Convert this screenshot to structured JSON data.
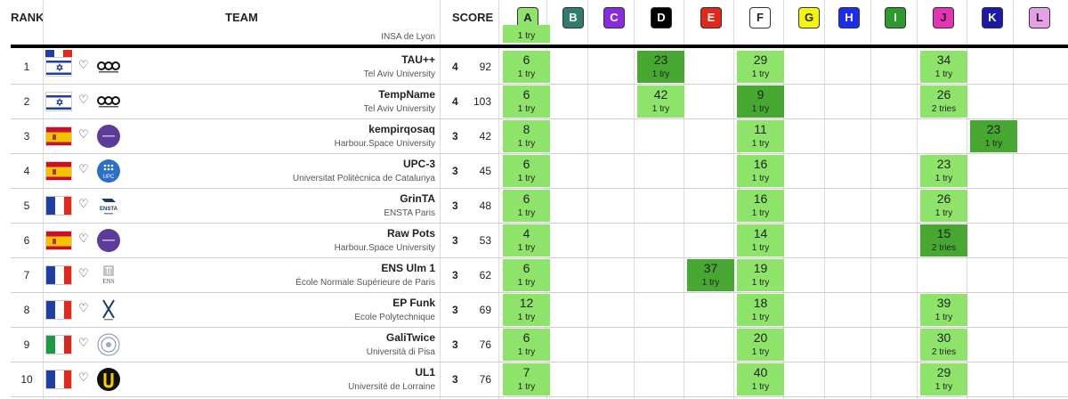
{
  "header": {
    "rank": "RANK",
    "team": "TEAM",
    "score": "SCORE"
  },
  "problems": [
    {
      "letter": "A",
      "color": "#8ee46a"
    },
    {
      "letter": "B",
      "color": "#2e7d6e"
    },
    {
      "letter": "C",
      "color": "#8a2be2"
    },
    {
      "letter": "D",
      "color": "#000000"
    },
    {
      "letter": "E",
      "color": "#e0281b"
    },
    {
      "letter": "F",
      "color": "#ffffff"
    },
    {
      "letter": "G",
      "color": "#f5f50a"
    },
    {
      "letter": "H",
      "color": "#1c2cf0"
    },
    {
      "letter": "I",
      "color": "#2c9a2c"
    },
    {
      "letter": "J",
      "color": "#e632b4"
    },
    {
      "letter": "K",
      "color": "#1a1aa8"
    },
    {
      "letter": "L",
      "color": "#e6a0e6"
    }
  ],
  "partial_row": {
    "university": "INSA de Lyon",
    "a_tries": "1 try"
  },
  "rows": [
    {
      "rank": "1",
      "team": "TAU++",
      "uni": "Tel Aviv University",
      "solved": "4",
      "penalty": "92",
      "flag": "il",
      "logo": "tau-logo",
      "cells": [
        {
          "p": 0,
          "time": "6",
          "tries": "1 try"
        },
        {
          "p": 3,
          "time": "23",
          "tries": "1 try",
          "first": true
        },
        {
          "p": 5,
          "time": "29",
          "tries": "1 try"
        },
        {
          "p": 9,
          "time": "34",
          "tries": "1 try"
        }
      ]
    },
    {
      "rank": "2",
      "team": "TempName",
      "uni": "Tel Aviv University",
      "solved": "4",
      "penalty": "103",
      "flag": "il",
      "logo": "tau-logo",
      "cells": [
        {
          "p": 0,
          "time": "6",
          "tries": "1 try"
        },
        {
          "p": 3,
          "time": "42",
          "tries": "1 try"
        },
        {
          "p": 5,
          "time": "9",
          "tries": "1 try",
          "first": true
        },
        {
          "p": 9,
          "time": "26",
          "tries": "2 tries"
        }
      ]
    },
    {
      "rank": "3",
      "team": "kempirqosaq",
      "uni": "Harbour.Space University",
      "solved": "3",
      "penalty": "42",
      "flag": "es",
      "logo": "harbour-logo",
      "cells": [
        {
          "p": 0,
          "time": "8",
          "tries": "1 try"
        },
        {
          "p": 5,
          "time": "11",
          "tries": "1 try"
        },
        {
          "p": 10,
          "time": "23",
          "tries": "1 try",
          "first": true
        }
      ]
    },
    {
      "rank": "4",
      "team": "UPC-3",
      "uni": "Universitat Politècnica de Catalunya",
      "solved": "3",
      "penalty": "45",
      "flag": "es",
      "logo": "upc-logo",
      "cells": [
        {
          "p": 0,
          "time": "6",
          "tries": "1 try"
        },
        {
          "p": 5,
          "time": "16",
          "tries": "1 try"
        },
        {
          "p": 9,
          "time": "23",
          "tries": "1 try"
        }
      ]
    },
    {
      "rank": "5",
      "team": "GrinTA",
      "uni": "ENSTA Paris",
      "solved": "3",
      "penalty": "48",
      "flag": "fr",
      "logo": "ensta-logo",
      "cells": [
        {
          "p": 0,
          "time": "6",
          "tries": "1 try"
        },
        {
          "p": 5,
          "time": "16",
          "tries": "1 try"
        },
        {
          "p": 9,
          "time": "26",
          "tries": "1 try"
        }
      ]
    },
    {
      "rank": "6",
      "team": "Raw Pots",
      "uni": "Harbour.Space University",
      "solved": "3",
      "penalty": "53",
      "flag": "es",
      "logo": "harbour-logo",
      "cells": [
        {
          "p": 0,
          "time": "4",
          "tries": "1 try"
        },
        {
          "p": 5,
          "time": "14",
          "tries": "1 try"
        },
        {
          "p": 9,
          "time": "15",
          "tries": "2 tries",
          "first": true
        }
      ]
    },
    {
      "rank": "7",
      "team": "ENS Ulm 1",
      "uni": "École Normale Supérieure de Paris",
      "solved": "3",
      "penalty": "62",
      "flag": "fr",
      "logo": "ens-logo",
      "cells": [
        {
          "p": 0,
          "time": "6",
          "tries": "1 try"
        },
        {
          "p": 4,
          "time": "37",
          "tries": "1 try",
          "first": true
        },
        {
          "p": 5,
          "time": "19",
          "tries": "1 try"
        }
      ]
    },
    {
      "rank": "8",
      "team": "EP Funk",
      "uni": "Ecole Polytechnique",
      "solved": "3",
      "penalty": "69",
      "flag": "fr",
      "logo": "polytechnique-logo",
      "cells": [
        {
          "p": 0,
          "time": "12",
          "tries": "1 try"
        },
        {
          "p": 5,
          "time": "18",
          "tries": "1 try"
        },
        {
          "p": 9,
          "time": "39",
          "tries": "1 try"
        }
      ]
    },
    {
      "rank": "9",
      "team": "GaliTwice",
      "uni": "Università di Pisa",
      "solved": "3",
      "penalty": "76",
      "flag": "it",
      "logo": "pisa-logo",
      "cells": [
        {
          "p": 0,
          "time": "6",
          "tries": "1 try"
        },
        {
          "p": 5,
          "time": "20",
          "tries": "1 try"
        },
        {
          "p": 9,
          "time": "30",
          "tries": "2 tries"
        }
      ]
    },
    {
      "rank": "10",
      "team": "UL1",
      "uni": "Université de Lorraine",
      "solved": "3",
      "penalty": "76",
      "flag": "fr",
      "logo": "lorraine-logo",
      "cells": [
        {
          "p": 0,
          "time": "7",
          "tries": "1 try"
        },
        {
          "p": 5,
          "time": "40",
          "tries": "1 try"
        },
        {
          "p": 9,
          "time": "29",
          "tries": "1 try"
        }
      ]
    }
  ]
}
